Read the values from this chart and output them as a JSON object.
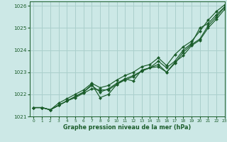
{
  "xlabel": "Graphe pression niveau de la mer (hPa)",
  "xlim": [
    -0.5,
    23
  ],
  "ylim": [
    1021.0,
    1026.2
  ],
  "yticks": [
    1021,
    1022,
    1023,
    1024,
    1025,
    1026
  ],
  "xticks": [
    0,
    1,
    2,
    3,
    4,
    5,
    6,
    7,
    8,
    9,
    10,
    11,
    12,
    13,
    14,
    15,
    16,
    17,
    18,
    19,
    20,
    21,
    22,
    23
  ],
  "bg_color": "#cce8e6",
  "grid_color": "#aacfcc",
  "line_color": "#1a5c2a",
  "series": [
    [
      1021.4,
      1021.4,
      1021.3,
      1021.5,
      1021.7,
      1021.85,
      1022.05,
      1022.25,
      1022.2,
      1022.2,
      1022.45,
      1022.65,
      1022.8,
      1023.05,
      1023.2,
      1023.25,
      1023.0,
      1023.45,
      1023.75,
      1024.2,
      1024.45,
      1025.0,
      1025.4,
      1025.85
    ],
    [
      1021.4,
      1021.4,
      1021.3,
      1021.5,
      1021.7,
      1021.9,
      1022.1,
      1022.45,
      1021.85,
      1022.0,
      1022.45,
      1022.7,
      1022.6,
      1023.1,
      1023.2,
      1023.5,
      1023.2,
      1023.5,
      1024.0,
      1024.3,
      1025.0,
      1025.2,
      1025.6,
      1025.95
    ],
    [
      1021.4,
      1021.4,
      1021.3,
      1021.5,
      1021.7,
      1021.9,
      1022.1,
      1022.4,
      1022.1,
      1022.25,
      1022.5,
      1022.7,
      1022.85,
      1023.05,
      1023.2,
      1023.35,
      1023.0,
      1023.4,
      1023.9,
      1024.25,
      1024.5,
      1025.1,
      1025.5,
      1025.95
    ],
    [
      1021.4,
      1021.4,
      1021.3,
      1021.6,
      1021.8,
      1022.0,
      1022.2,
      1022.5,
      1022.3,
      1022.4,
      1022.65,
      1022.85,
      1023.0,
      1023.25,
      1023.35,
      1023.65,
      1023.3,
      1023.8,
      1024.15,
      1024.4,
      1024.85,
      1025.35,
      1025.75,
      1026.05
    ]
  ]
}
